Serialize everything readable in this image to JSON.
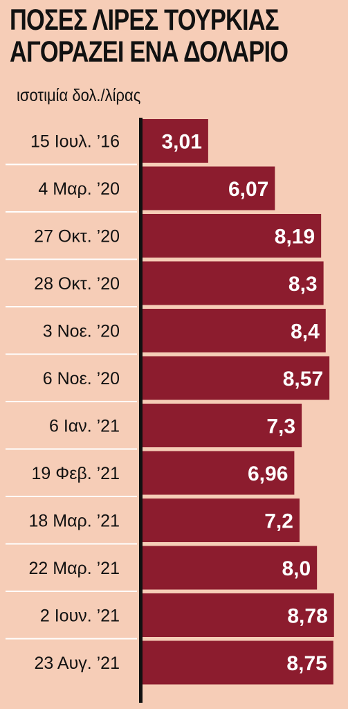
{
  "title_lines": [
    "ΠΟΣΕΣ ΛΙΡΕΣ ΤΟΥΡΚΙΑΣ",
    "ΑΓΟΡΑΖΕΙ ΕΝΑ ΔΟΛΑΡΙΟ"
  ],
  "subtitle": "ισοτιμία δολ./λίρας",
  "colors": {
    "background": "#f6cdb7",
    "bar": "#8c1c2e",
    "axis": "#111111",
    "separator": "#ffffff"
  },
  "chart_data": {
    "type": "bar",
    "orientation": "horizontal",
    "categories": [
      "15 Ιουλ. ’16",
      "4 Μαρ. ’20",
      "27 Οκτ. ’20",
      "28 Οκτ. ’20",
      "3 Νοε. ’20",
      "6 Νοε. ’20",
      "6 Ιαν. ’21",
      "19 Φεβ. ’21",
      "18 Μαρ. ’21",
      "22 Μαρ. ’21",
      "2 Ιουν. ’21",
      "23 Αυγ. ’21"
    ],
    "values": [
      3.01,
      6.07,
      8.19,
      8.3,
      8.4,
      8.57,
      7.3,
      6.96,
      7.2,
      8.0,
      8.78,
      8.75
    ],
    "value_labels": [
      "3,01",
      "6,07",
      "8,19",
      "8,3",
      "8,4",
      "8,57",
      "7,3",
      "6,96",
      "7,2",
      "8,0",
      "8,78",
      "8,75"
    ],
    "xlim": [
      0,
      9.2
    ],
    "grid": false,
    "legend": "none"
  }
}
